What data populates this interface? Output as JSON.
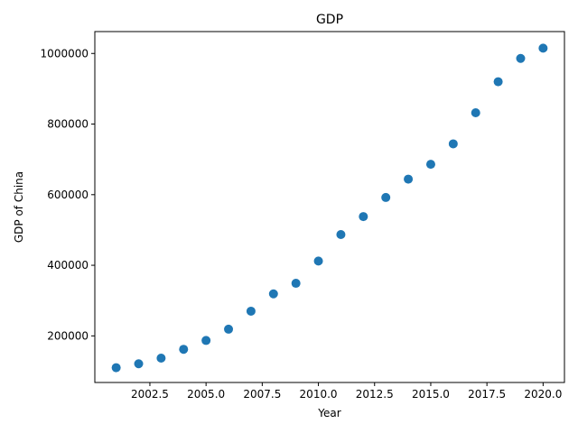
{
  "chart_data": {
    "type": "scatter",
    "title": "GDP",
    "xlabel": "Year",
    "ylabel": "GDP of China",
    "xlim": [
      2000.05,
      2020.95
    ],
    "ylim": [
      68000,
      1062000
    ],
    "x_ticks": [
      2002.5,
      2005.0,
      2007.5,
      2010.0,
      2012.5,
      2015.0,
      2017.5,
      2020.0
    ],
    "x_tick_labels": [
      "2002.5",
      "2005.0",
      "2007.5",
      "2010.0",
      "2012.5",
      "2015.0",
      "2017.5",
      "2020.0"
    ],
    "y_ticks": [
      200000,
      400000,
      600000,
      800000,
      1000000
    ],
    "y_tick_labels": [
      "200000",
      "400000",
      "600000",
      "800000",
      "1000000"
    ],
    "grid": false,
    "marker_color": "#1f77b4",
    "series": [
      {
        "x": [
          2001,
          2002,
          2003,
          2004,
          2005,
          2006,
          2007,
          2008,
          2009,
          2010,
          2011,
          2012,
          2013,
          2014,
          2015,
          2016,
          2017,
          2018,
          2019,
          2020
        ],
        "y": [
          110000,
          121000,
          137000,
          162000,
          187000,
          219000,
          270000,
          319000,
          349000,
          412000,
          487000,
          538000,
          592000,
          644000,
          686000,
          744000,
          832000,
          920000,
          986000,
          1015000
        ]
      }
    ]
  }
}
